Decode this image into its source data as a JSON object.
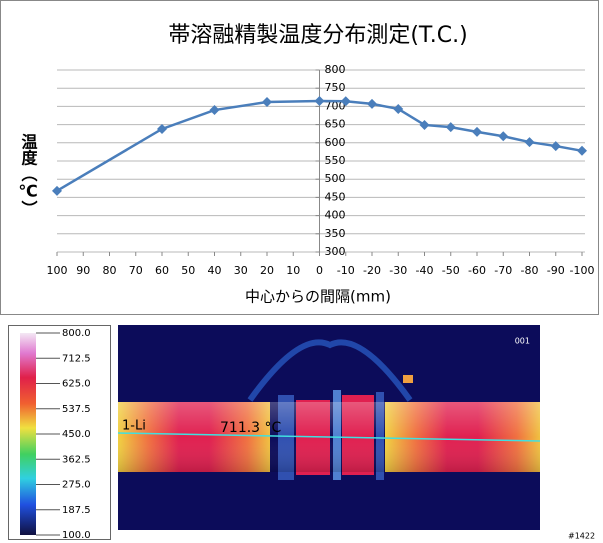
{
  "chart_data": {
    "type": "line",
    "title": "帯溶融精製温度分布測定(T.C.)",
    "x_label": "中心からの間隔(mm)",
    "y_label": "温度（℃）",
    "x": [
      100,
      60,
      40,
      20,
      0,
      -10,
      -20,
      -30,
      -40,
      -50,
      -60,
      -70,
      -80,
      -90,
      -100
    ],
    "values": [
      468,
      638,
      690,
      712,
      715,
      714,
      707,
      693,
      649,
      643,
      630,
      618,
      602,
      591,
      578
    ],
    "color": "#4a7ebb",
    "grid": true,
    "xlim": [
      100,
      -100
    ],
    "xticks": [
      100,
      90,
      80,
      70,
      60,
      50,
      40,
      30,
      20,
      10,
      0,
      -10,
      -20,
      -30,
      -40,
      -50,
      -60,
      -70,
      -80,
      -90,
      -100
    ],
    "ylim": [
      300,
      800
    ],
    "yticks": [
      300,
      350,
      400,
      450,
      500,
      550,
      600,
      650,
      700,
      750,
      800
    ]
  },
  "thermal_image": {
    "scale_ticks": [
      {
        "value": 800,
        "label": "800.0"
      },
      {
        "value": 712.5,
        "label": "712.5"
      },
      {
        "value": 625,
        "label": "625.0"
      },
      {
        "value": 537.5,
        "label": "537.5"
      },
      {
        "value": 450,
        "label": "450.0"
      },
      {
        "value": 362.5,
        "label": "362.5"
      },
      {
        "value": 275,
        "label": "275.0"
      },
      {
        "value": 187.5,
        "label": "187.5"
      },
      {
        "value": 100,
        "label": "100.0"
      }
    ],
    "scale_lim": [
      100,
      800
    ],
    "frame_number": "001",
    "spot_label": "1-Li",
    "spot_value": "711.3 °C",
    "footer_id": "#1422"
  }
}
